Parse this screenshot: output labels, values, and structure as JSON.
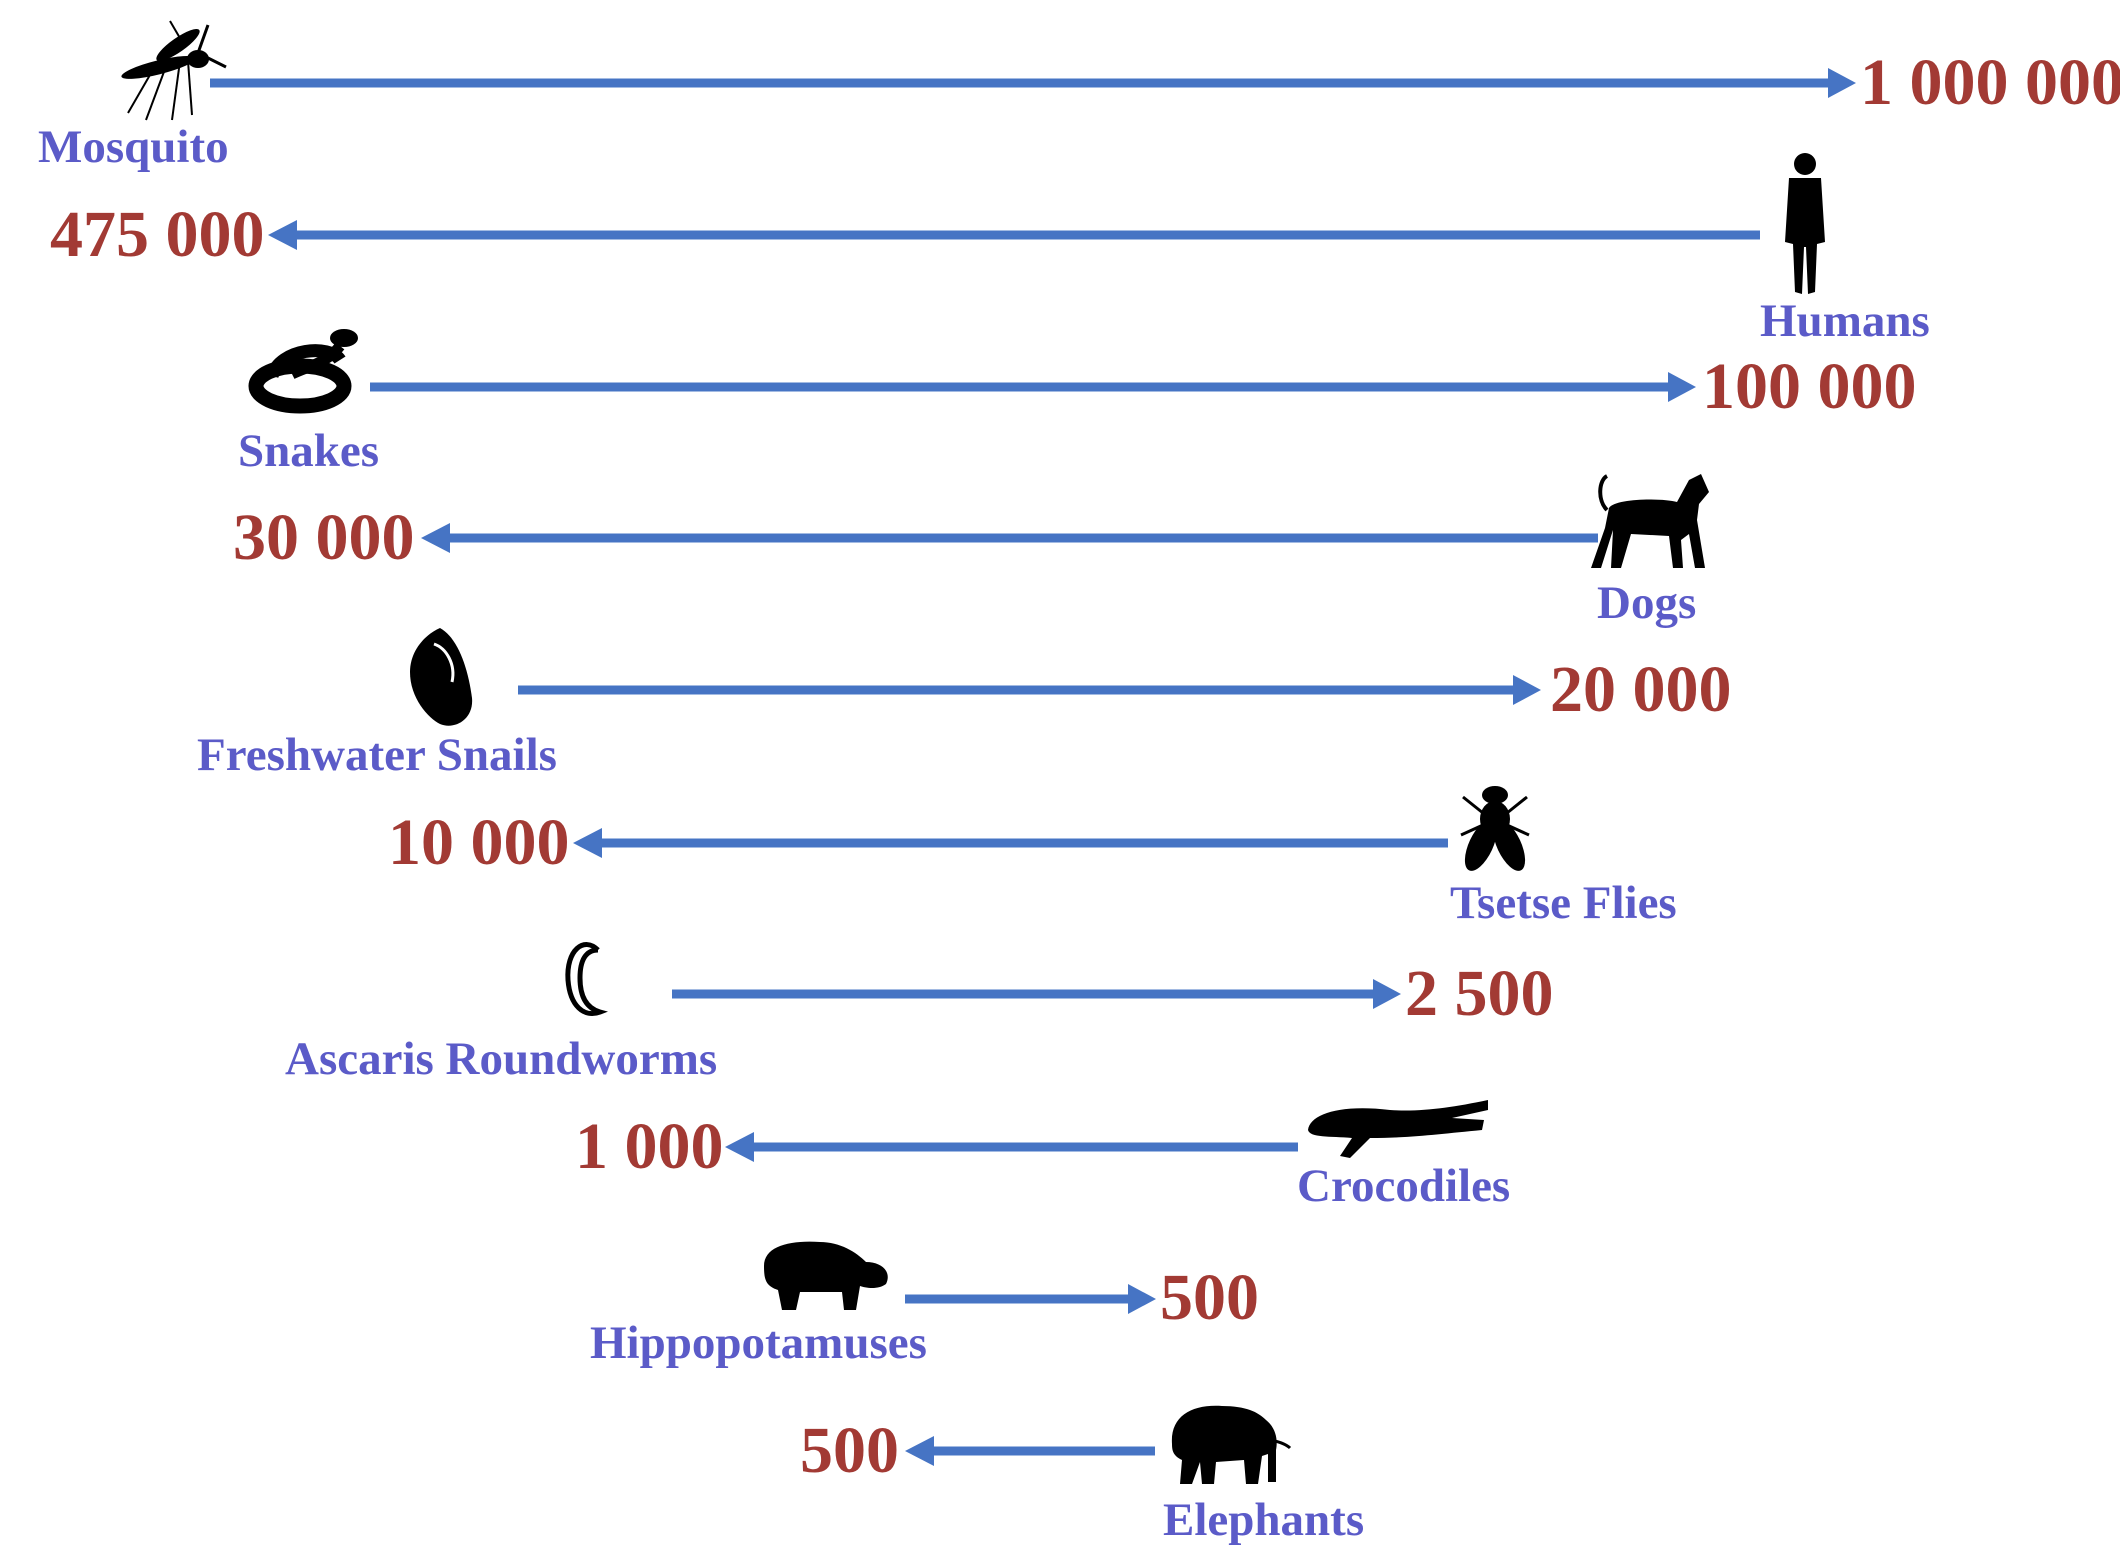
{
  "rows": [
    {
      "animal": "Mosquito",
      "deaths": "1 000 000",
      "icon": "mosquito-icon"
    },
    {
      "animal": "Humans",
      "deaths": "475 000",
      "icon": "human-icon"
    },
    {
      "animal": "Snakes",
      "deaths": "100 000",
      "icon": "snake-icon"
    },
    {
      "animal": "Dogs",
      "deaths": "30 000",
      "icon": "dog-icon"
    },
    {
      "animal": "Freshwater Snails",
      "deaths": "20 000",
      "icon": "snail-icon"
    },
    {
      "animal": "Tsetse Flies",
      "deaths": "10 000",
      "icon": "tsetse-fly-icon"
    },
    {
      "animal": "Ascaris Roundworms",
      "deaths": "2 500",
      "icon": "roundworm-icon"
    },
    {
      "animal": "Crocodiles",
      "deaths": "1 000",
      "icon": "crocodile-icon"
    },
    {
      "animal": "Hippopotamuses",
      "deaths": "500",
      "icon": "hippopotamus-icon"
    },
    {
      "animal": "Elephants",
      "deaths": "500",
      "icon": "elephant-icon"
    }
  ],
  "colors": {
    "animal_label": "#5b5bc8",
    "death_count": "#a23a34",
    "arrow": "#4674c4",
    "icon": "#000000"
  }
}
